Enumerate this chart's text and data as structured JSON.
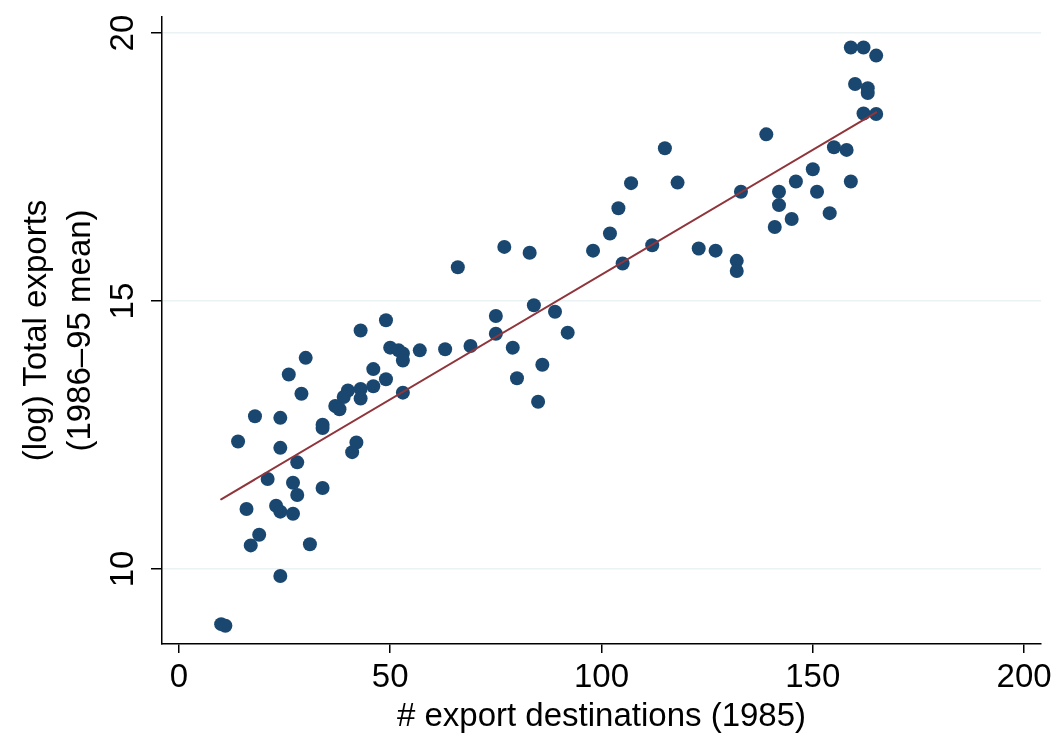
{
  "chart_data": {
    "type": "scatter",
    "xlabel": "# export destinations (1985)",
    "ylabel": "(log) Total exports\n(1986–95 mean)",
    "xlim": [
      -4,
      204
    ],
    "ylim": [
      8.6,
      20.3
    ],
    "xticks": [
      0,
      50,
      100,
      150,
      200
    ],
    "yticks": [
      10,
      15,
      20
    ],
    "grid": "y",
    "series": [
      {
        "color": "#1a476f",
        "marker": "circle",
        "x": [
          49,
          43,
          50,
          52,
          53,
          53,
          57,
          63,
          30,
          46,
          26,
          49,
          29,
          40,
          43,
          39,
          43,
          37,
          38,
          46,
          53,
          18,
          24,
          34,
          34,
          14,
          24,
          42,
          41,
          28,
          21,
          27,
          28,
          34,
          16,
          23,
          24,
          27,
          19,
          17,
          31,
          24,
          10,
          11,
          77,
          83,
          98,
          66,
          84,
          75,
          89,
          75,
          92,
          69,
          79,
          86,
          80,
          85,
          115,
          139,
          155,
          158,
          107,
          118,
          150,
          146,
          159,
          133,
          142,
          151,
          142,
          104,
          145,
          154,
          141,
          102,
          112,
          105,
          123,
          127,
          132,
          132,
          159,
          162,
          165,
          160,
          163,
          163,
          162,
          165
        ],
        "values": [
          14.64,
          14.45,
          14.13,
          14.08,
          14.02,
          13.89,
          14.08,
          14.1,
          13.94,
          13.73,
          13.63,
          13.54,
          13.27,
          13.33,
          13.36,
          13.21,
          13.18,
          13.04,
          12.98,
          13.41,
          13.29,
          12.85,
          12.82,
          12.69,
          12.63,
          12.38,
          12.26,
          12.36,
          12.18,
          11.99,
          11.68,
          11.61,
          11.38,
          11.51,
          11.12,
          11.18,
          11.07,
          11.03,
          10.64,
          10.44,
          10.46,
          9.87,
          8.97,
          8.94,
          16.01,
          15.9,
          15.94,
          15.63,
          14.92,
          14.72,
          14.8,
          14.39,
          14.41,
          14.16,
          14.13,
          13.81,
          13.56,
          13.12,
          17.85,
          18.11,
          17.87,
          17.82,
          17.2,
          17.21,
          17.46,
          17.23,
          17.23,
          17.04,
          17.04,
          17.04,
          16.79,
          16.73,
          16.53,
          16.64,
          16.38,
          16.26,
          16.04,
          15.7,
          15.98,
          15.94,
          15.75,
          15.56,
          19.73,
          19.73,
          19.58,
          19.05,
          18.97,
          18.88,
          18.5,
          18.49
        ]
      },
      {
        "type": "line",
        "color": "#90353b",
        "marker": "none",
        "line_style": "solid",
        "x": [
          10,
          165
        ],
        "values": [
          11.3,
          18.52
        ]
      }
    ]
  }
}
